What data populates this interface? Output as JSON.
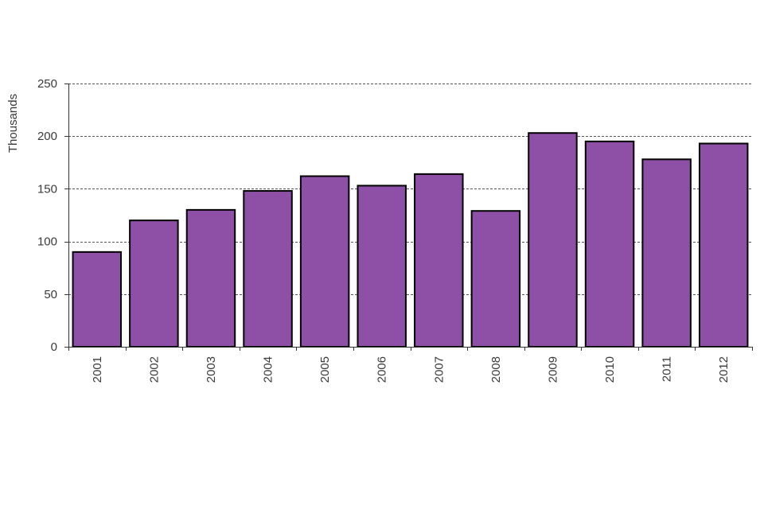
{
  "chart_data": {
    "type": "bar",
    "title": "",
    "xlabel": "",
    "ylabel": "Thousands",
    "ylim": [
      0,
      250
    ],
    "yticks": [
      0,
      50,
      100,
      150,
      200,
      250
    ],
    "grid": true,
    "categories": [
      "2001",
      "2002",
      "2003",
      "2004",
      "2005",
      "2006",
      "2007",
      "2008",
      "2009",
      "2010",
      "2011",
      "2012"
    ],
    "values": [
      90,
      120,
      130,
      148,
      162,
      153,
      164,
      129,
      203,
      195,
      178,
      193
    ],
    "bar_color": "#8e4fa6",
    "bar_edge_color": "#000000",
    "grid_color": "#555555",
    "axis_color": "#333333"
  }
}
